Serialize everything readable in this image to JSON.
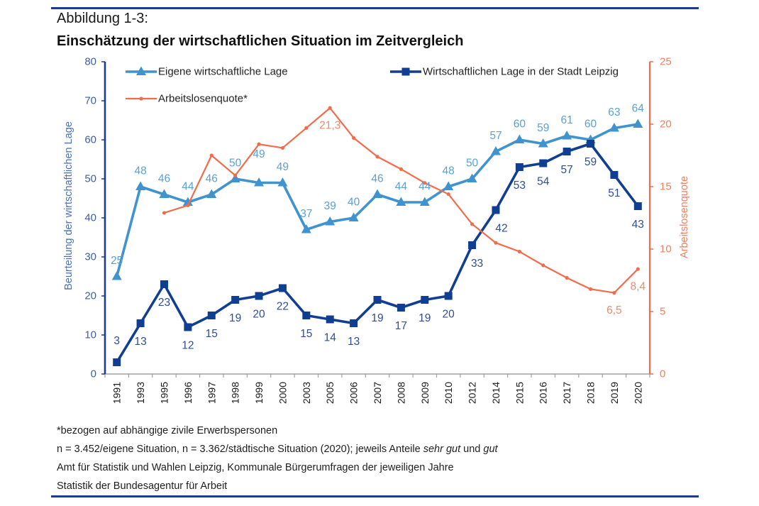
{
  "figure": {
    "label": "Abbildung 1-3:",
    "title": "Einschätzung der wirtschaftlichen Situation im Zeitvergleich"
  },
  "footnotes": {
    "line1": "*bezogen auf abhängige zivile Erwerbspersonen",
    "line2": {
      "text": "n = 3.452/eigene Situation, n = 3.362/städtische Situation (2020); jeweils Anteile ",
      "em1": "sehr gut",
      "mid": " und ",
      "em2": "gut"
    },
    "line3": "Amt für Statistik und Wahlen Leipzig, Kommunale Bürgerumfragen der jeweiligen Jahre",
    "line4": "Statistik der Bundesagentur für Arbeit"
  },
  "colors": {
    "rule": "#1f3a8f",
    "left_axis": "#1f3a8f",
    "right_axis": "#f06c4c",
    "x_axis": "#a0a0a0"
  },
  "chart_data": {
    "type": "line",
    "title": "Einschätzung der wirtschaftlichen Situation im Zeitvergleich",
    "categories": [
      "1991",
      "1993",
      "1995",
      "1996",
      "1997",
      "1998",
      "1999",
      "2000",
      "2003",
      "2005",
      "2006",
      "2007",
      "2008",
      "2009",
      "2010",
      "2012",
      "2014",
      "2015",
      "2016",
      "2017",
      "2018",
      "2019",
      "2020"
    ],
    "xlabel": "",
    "ylabel": "Beurteilung der wirtschaftlichen Lage",
    "ylim": [
      0,
      80
    ],
    "yticks": [
      0,
      10,
      20,
      30,
      40,
      50,
      60,
      70,
      80
    ],
    "y2label": "Arbeitslosenquote",
    "y2lim": [
      0,
      25
    ],
    "y2ticks": [
      0,
      5,
      10,
      15,
      20,
      25
    ],
    "grid": false,
    "legend": "top",
    "series": [
      {
        "name": "Eigene wirtschaftliche Lage",
        "axis": "left",
        "marker": "triangle",
        "color": "#3f93cf",
        "label_color": "#5ba0d6",
        "values": [
          25,
          48,
          46,
          44,
          46,
          50,
          49,
          49,
          37,
          39,
          40,
          46,
          44,
          44,
          48,
          50,
          57,
          60,
          59,
          61,
          60,
          63,
          64
        ],
        "labels": [
          "25",
          "48",
          "46",
          "44",
          "46",
          "50",
          "49",
          "49",
          "37",
          "39",
          "40",
          "46",
          "44",
          "44",
          "48",
          "50",
          "57",
          "60",
          "59",
          "61",
          "60",
          "63",
          "64"
        ]
      },
      {
        "name": "Wirtschaftlichen Lage in der Stadt Leipzig",
        "axis": "left",
        "marker": "square",
        "color": "#0f3e92",
        "label_color": "#2f4e98",
        "values": [
          3,
          13,
          23,
          12,
          15,
          19,
          20,
          22,
          15,
          14,
          13,
          19,
          17,
          19,
          20,
          33,
          42,
          53,
          54,
          57,
          59,
          51,
          43
        ],
        "labels": [
          "3",
          "13",
          "23",
          "12",
          "15",
          "19",
          "20",
          "22",
          "15",
          "14",
          "13",
          "19",
          "17",
          "19",
          "20",
          "33",
          "42",
          "53",
          "54",
          "57",
          "59",
          "51",
          "43"
        ]
      },
      {
        "name": "Arbeitslosenquote*",
        "axis": "right",
        "marker": "dot",
        "color": "#f26c4b",
        "label_color": "#f08a6c",
        "values": [
          null,
          null,
          12.9,
          13.5,
          17.5,
          15.9,
          18.4,
          18.1,
          19.7,
          21.3,
          18.9,
          17.4,
          16.4,
          15.3,
          14.4,
          12.0,
          10.5,
          9.8,
          8.7,
          7.7,
          6.8,
          6.5,
          8.4
        ],
        "labels": [
          null,
          null,
          null,
          null,
          null,
          null,
          null,
          null,
          null,
          "21,3",
          null,
          null,
          null,
          null,
          null,
          null,
          null,
          null,
          null,
          null,
          null,
          "6,5",
          "8,4"
        ]
      }
    ]
  }
}
